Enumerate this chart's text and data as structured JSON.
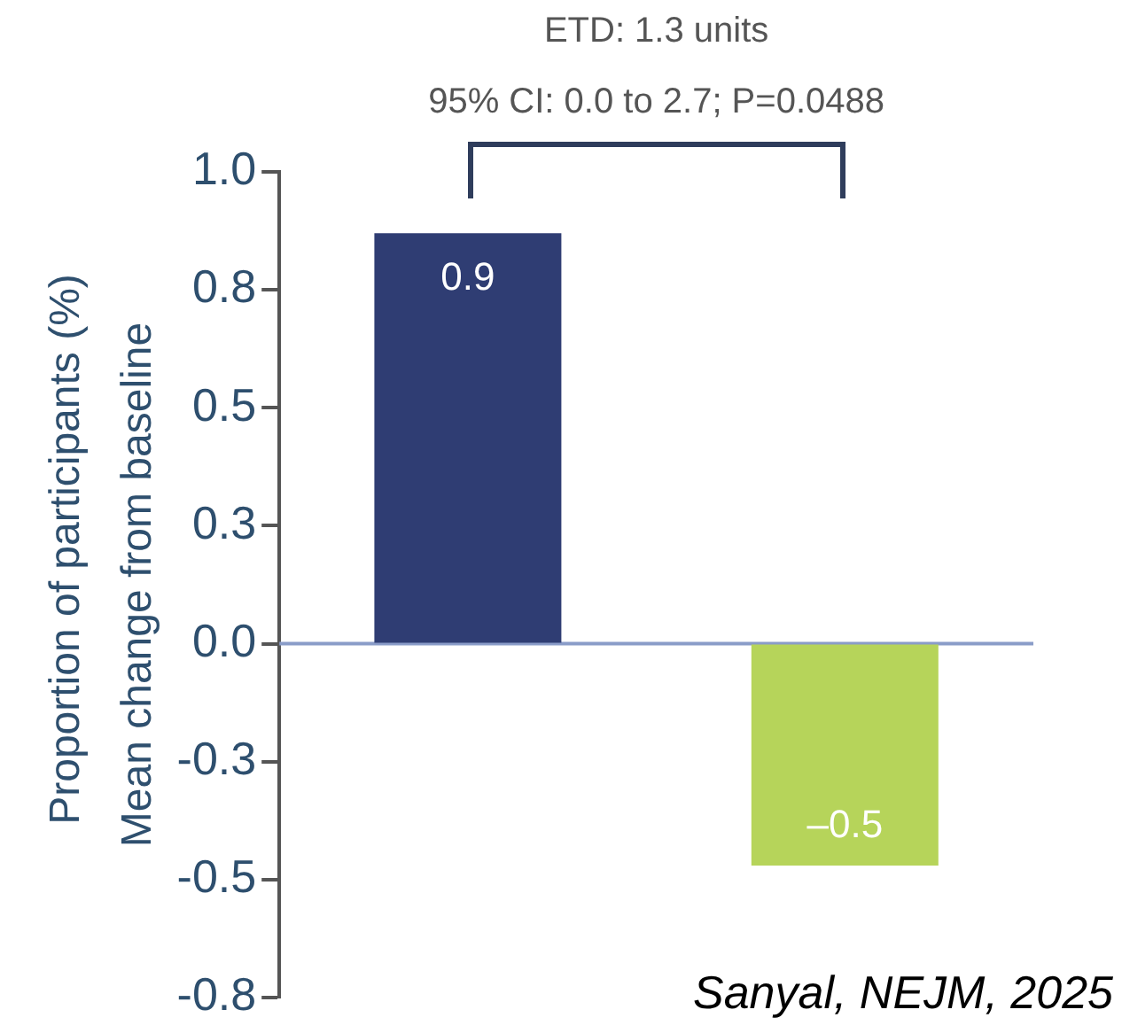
{
  "chart_data": {
    "type": "bar",
    "ylabel": "Mean change from baseline",
    "categories": [
      null,
      null
    ],
    "values": [
      0.87,
      -0.47
    ],
    "value_labels": [
      "0.9",
      "–0.5"
    ],
    "colors": [
      "#2f3d73",
      "#b6d45a"
    ],
    "ylim": [
      -0.75,
      1.0
    ],
    "yticks": [
      {
        "value": 1.0,
        "label": "1.0"
      },
      {
        "value": 0.75,
        "label": "0.8"
      },
      {
        "value": 0.5,
        "label": "0.5"
      },
      {
        "value": 0.25,
        "label": "0.3"
      },
      {
        "value": 0,
        "label": "0.0"
      },
      {
        "value": -0.25,
        "label": "-0.3"
      },
      {
        "value": -0.5,
        "label": "-0.5"
      },
      {
        "value": -0.75,
        "label": "-0.8"
      }
    ],
    "legend": false,
    "ref_lines": [
      {
        "axis": "y",
        "value": 0,
        "color": "#8a9cc8"
      }
    ],
    "annotations": [
      "ETD: 1.3 units",
      "95% CI: 0.0 to 2.7; P=0.0488",
      "Sanyal, NEJM, 2025",
      "Proportion of participants (%)"
    ]
  }
}
